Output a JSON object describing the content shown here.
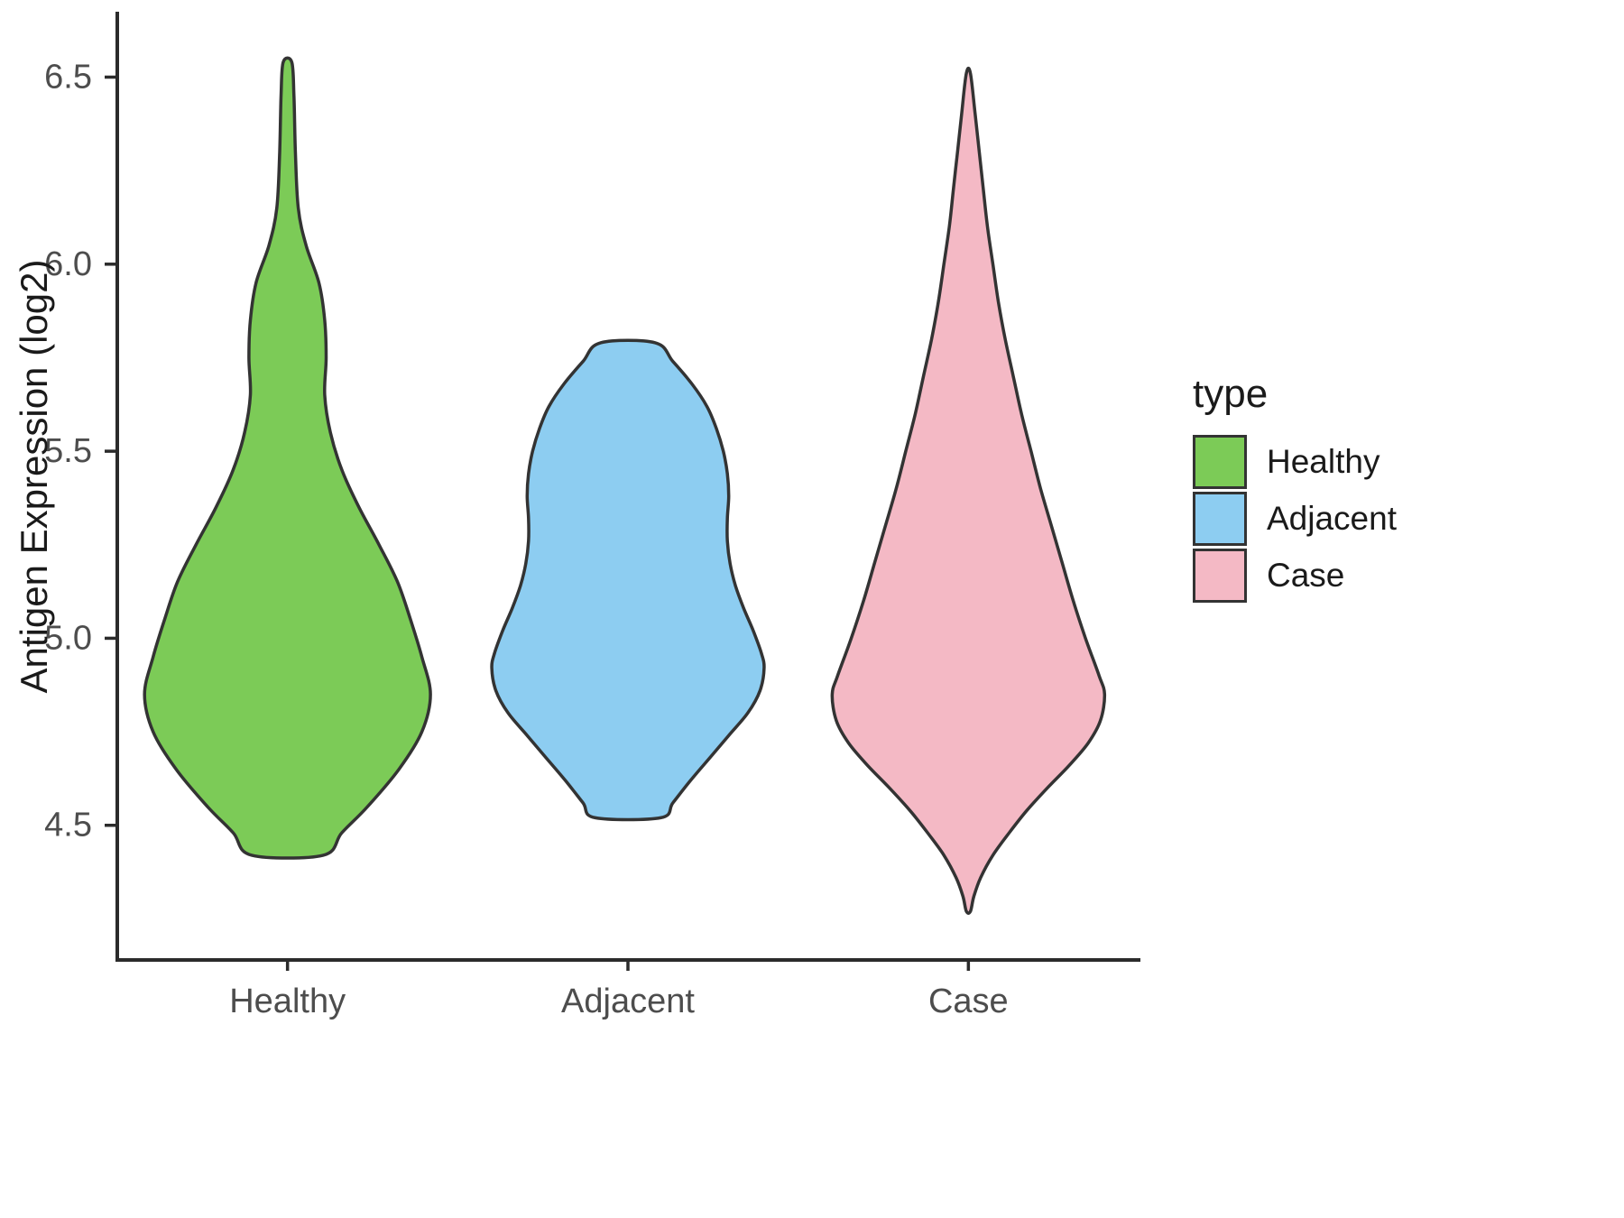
{
  "axes": {
    "y": {
      "label": "Antigen Expression (log2)",
      "ticks": [
        4.5,
        5.0,
        5.5,
        6.0,
        6.5
      ],
      "tick_labels": [
        "4.5",
        "5.0",
        "5.5",
        "6.0",
        "6.5"
      ]
    },
    "x": {
      "label": "",
      "categories": [
        "Healthy",
        "Adjacent",
        "Case"
      ]
    }
  },
  "legend": {
    "title": "type",
    "items": [
      {
        "label": "Healthy",
        "color": "#7CCB57"
      },
      {
        "label": "Adjacent",
        "color": "#8DCDF1"
      },
      {
        "label": "Case",
        "color": "#F4B9C5"
      }
    ]
  },
  "style": {
    "violin_stroke": "#333333",
    "axis_color": "#2b2b2b",
    "tick_text_color": "#4D4D4D",
    "axis_title_color": "#1a1a1a",
    "background": "#ffffff"
  },
  "chart_data": {
    "type": "violin",
    "title": "",
    "xlabel": "",
    "ylabel": "Antigen Expression (log2)",
    "ylim": [
      4.14,
      6.67
    ],
    "yticks": [
      4.5,
      5.0,
      5.5,
      6.0,
      6.5
    ],
    "categories": [
      "Healthy",
      "Adjacent",
      "Case"
    ],
    "legend_title": "type",
    "series": [
      {
        "name": "Healthy",
        "color": "#7CCB57",
        "width_scale": 0.42,
        "y_min": 4.42,
        "y_max": 6.54,
        "profile": [
          [
            6.54,
            0.03
          ],
          [
            6.45,
            0.045
          ],
          [
            6.3,
            0.055
          ],
          [
            6.15,
            0.075
          ],
          [
            6.05,
            0.13
          ],
          [
            5.95,
            0.22
          ],
          [
            5.85,
            0.26
          ],
          [
            5.75,
            0.27
          ],
          [
            5.65,
            0.26
          ],
          [
            5.55,
            0.3
          ],
          [
            5.45,
            0.38
          ],
          [
            5.35,
            0.5
          ],
          [
            5.25,
            0.64
          ],
          [
            5.15,
            0.77
          ],
          [
            5.05,
            0.86
          ],
          [
            4.95,
            0.94
          ],
          [
            4.85,
            1.0
          ],
          [
            4.75,
            0.94
          ],
          [
            4.65,
            0.78
          ],
          [
            4.55,
            0.56
          ],
          [
            4.48,
            0.38
          ],
          [
            4.42,
            0.25
          ]
        ]
      },
      {
        "name": "Adjacent",
        "color": "#8DCDF1",
        "width_scale": 0.4,
        "y_min": 4.52,
        "y_max": 5.79,
        "profile": [
          [
            5.79,
            0.2
          ],
          [
            5.74,
            0.33
          ],
          [
            5.68,
            0.47
          ],
          [
            5.62,
            0.58
          ],
          [
            5.56,
            0.65
          ],
          [
            5.5,
            0.7
          ],
          [
            5.44,
            0.73
          ],
          [
            5.38,
            0.74
          ],
          [
            5.32,
            0.73
          ],
          [
            5.26,
            0.73
          ],
          [
            5.2,
            0.75
          ],
          [
            5.14,
            0.79
          ],
          [
            5.08,
            0.85
          ],
          [
            5.02,
            0.92
          ],
          [
            4.96,
            0.98
          ],
          [
            4.92,
            1.0
          ],
          [
            4.86,
            0.97
          ],
          [
            4.8,
            0.88
          ],
          [
            4.74,
            0.74
          ],
          [
            4.68,
            0.6
          ],
          [
            4.62,
            0.46
          ],
          [
            4.56,
            0.33
          ],
          [
            4.52,
            0.24
          ]
        ]
      },
      {
        "name": "Case",
        "color": "#F4B9C5",
        "width_scale": 0.4,
        "y_min": 4.27,
        "y_max": 6.51,
        "profile": [
          [
            6.51,
            0.015
          ],
          [
            6.4,
            0.05
          ],
          [
            6.3,
            0.08
          ],
          [
            6.2,
            0.11
          ],
          [
            6.1,
            0.14
          ],
          [
            6.0,
            0.18
          ],
          [
            5.9,
            0.22
          ],
          [
            5.8,
            0.27
          ],
          [
            5.7,
            0.33
          ],
          [
            5.6,
            0.39
          ],
          [
            5.5,
            0.46
          ],
          [
            5.4,
            0.53
          ],
          [
            5.3,
            0.61
          ],
          [
            5.2,
            0.69
          ],
          [
            5.1,
            0.77
          ],
          [
            5.0,
            0.86
          ],
          [
            4.9,
            0.96
          ],
          [
            4.85,
            1.0
          ],
          [
            4.78,
            0.97
          ],
          [
            4.72,
            0.88
          ],
          [
            4.66,
            0.74
          ],
          [
            4.6,
            0.58
          ],
          [
            4.54,
            0.43
          ],
          [
            4.48,
            0.3
          ],
          [
            4.42,
            0.18
          ],
          [
            4.36,
            0.09
          ],
          [
            4.31,
            0.04
          ],
          [
            4.27,
            0.015
          ]
        ]
      }
    ]
  }
}
